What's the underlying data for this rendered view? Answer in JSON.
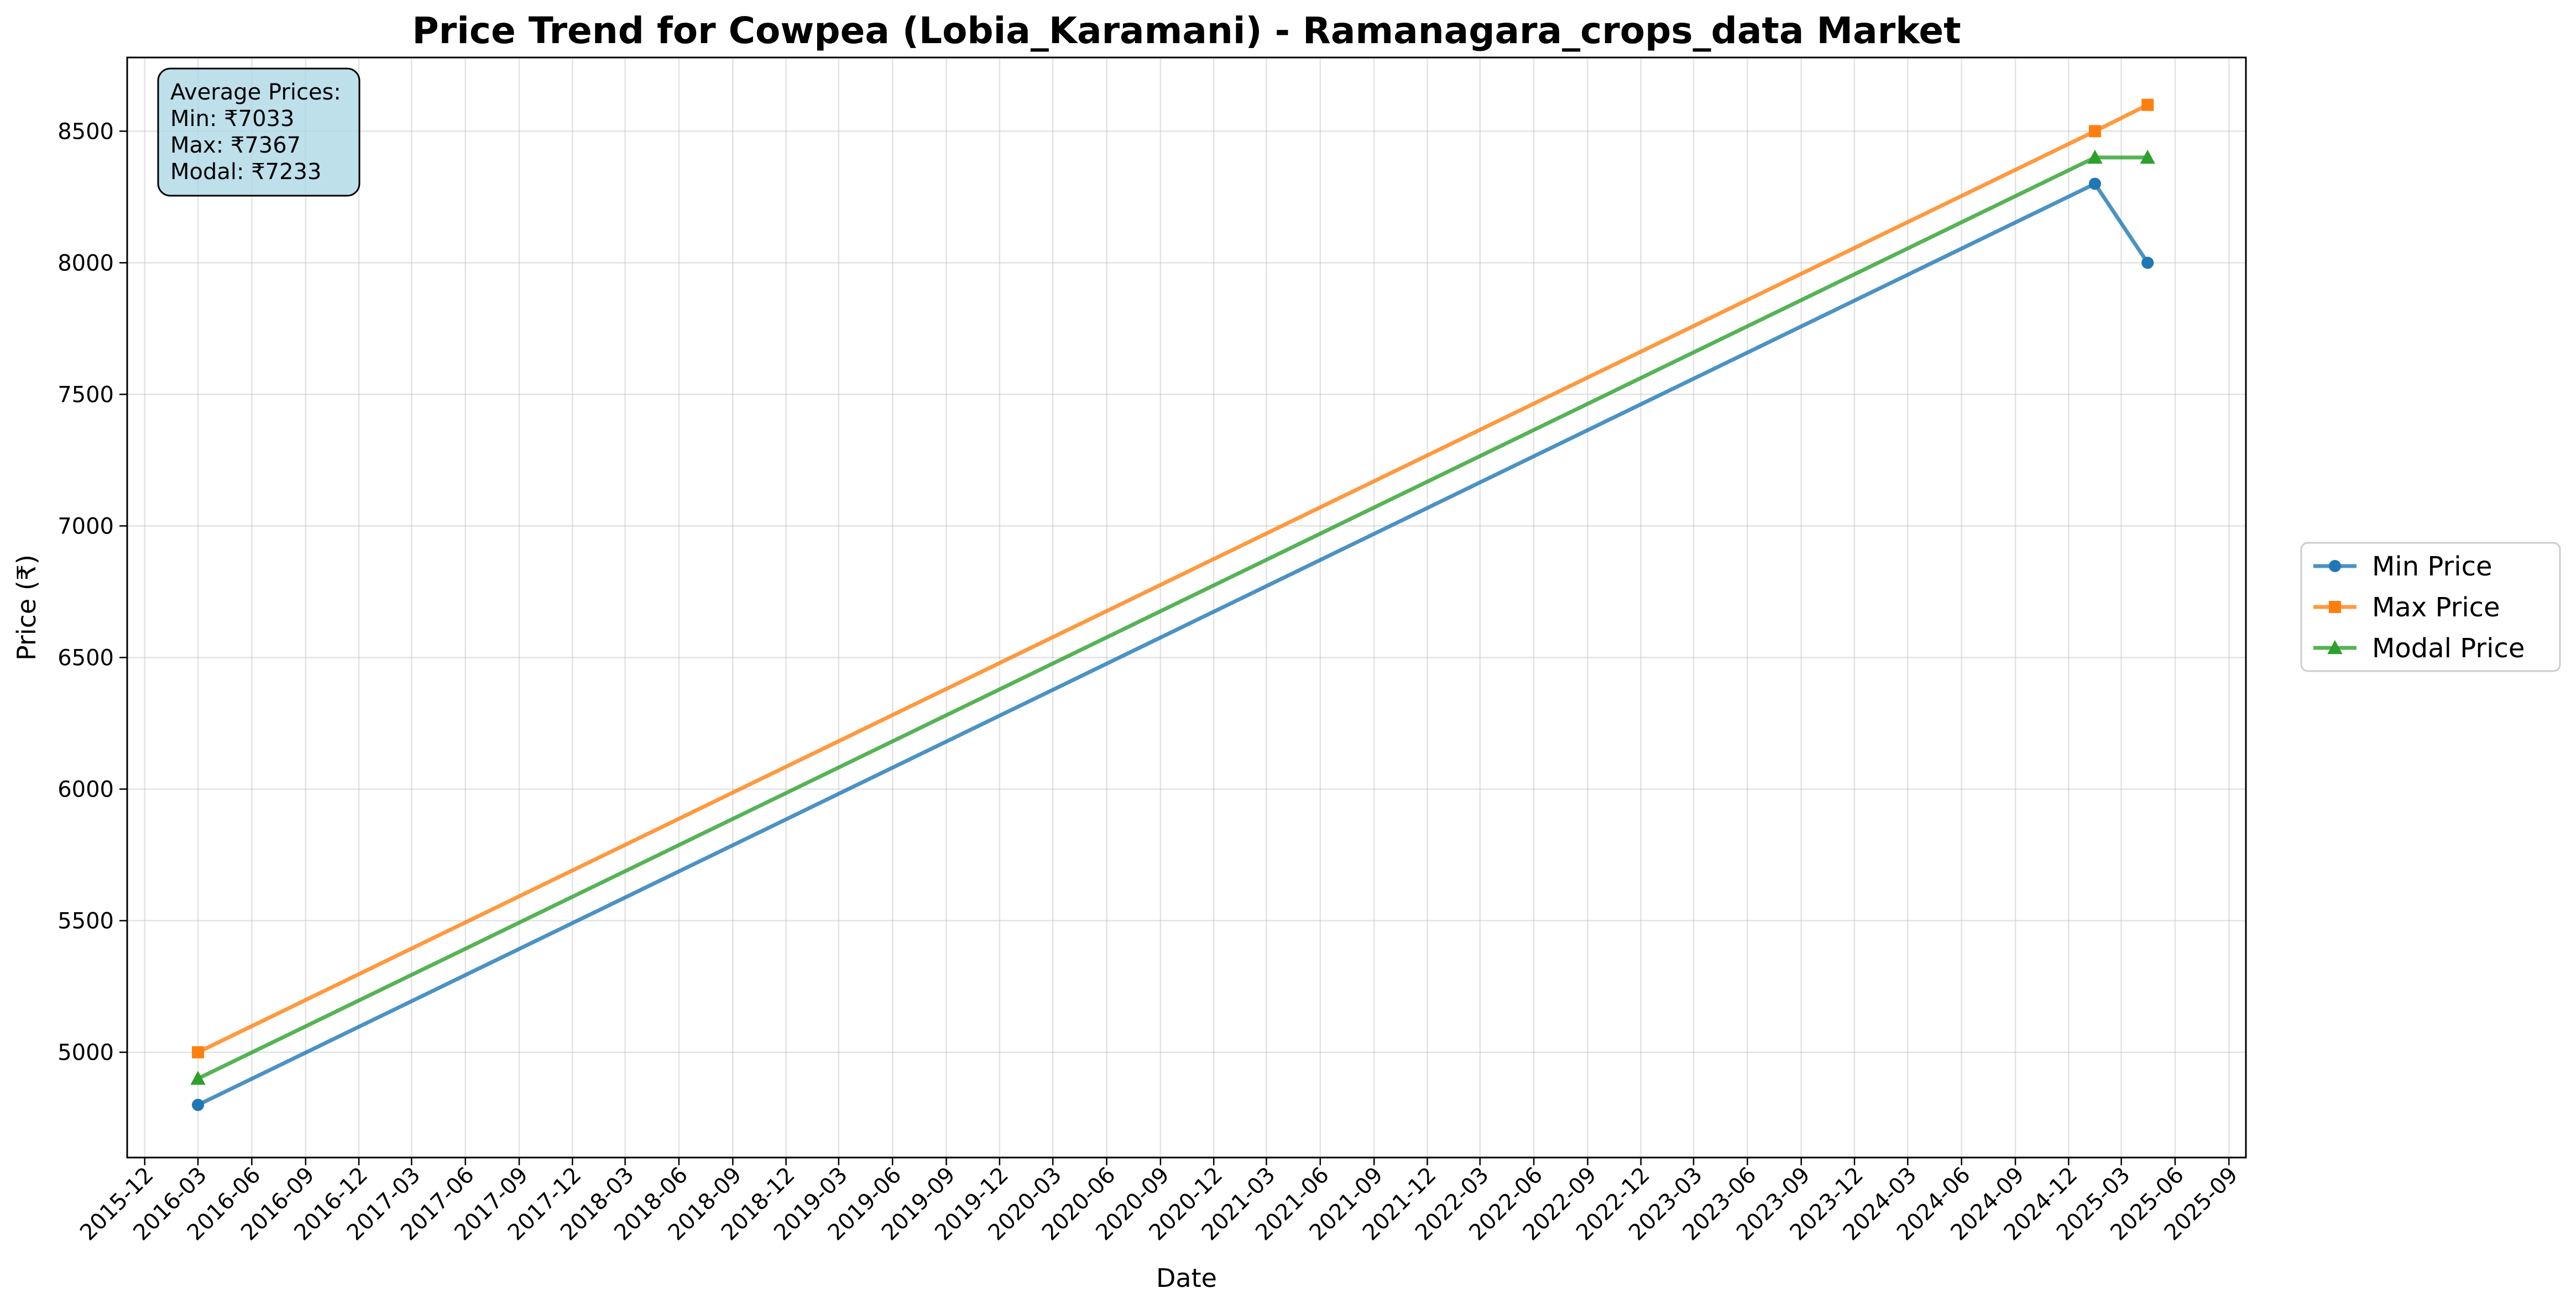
{
  "chart_data": {
    "type": "line",
    "title": "Price Trend for Cowpea (Lobia_Karamani) - Ramanagara_crops_data Market",
    "xlabel": "Date",
    "ylabel": "Price (₹)",
    "x_ticks": [
      "2015-12",
      "2016-03",
      "2016-06",
      "2016-09",
      "2016-12",
      "2017-03",
      "2017-06",
      "2017-09",
      "2017-12",
      "2018-03",
      "2018-06",
      "2018-09",
      "2018-12",
      "2019-03",
      "2019-06",
      "2019-09",
      "2019-12",
      "2020-03",
      "2020-06",
      "2020-09",
      "2020-12",
      "2021-03",
      "2021-06",
      "2021-09",
      "2021-12",
      "2022-03",
      "2022-06",
      "2022-09",
      "2022-12",
      "2023-03",
      "2023-06",
      "2023-09",
      "2023-12",
      "2024-03",
      "2024-06",
      "2024-09",
      "2024-12",
      "2025-03",
      "2025-06",
      "2025-09"
    ],
    "y_ticks": [
      5000,
      5500,
      6000,
      6500,
      7000,
      7500,
      8000,
      8500
    ],
    "xlim": [
      "2015-11-01",
      "2025-09-30"
    ],
    "ylim": [
      4600,
      8780
    ],
    "grid": true,
    "legend_position": "right, outside plot",
    "series": [
      {
        "name": "Min Price",
        "color": "#1f77b4",
        "marker": "circle",
        "points": [
          {
            "x": "2016-03-01",
            "y": 4800
          },
          {
            "x": "2025-01-15",
            "y": 8300
          },
          {
            "x": "2025-04-15",
            "y": 8000
          }
        ]
      },
      {
        "name": "Max Price",
        "color": "#ff7f0e",
        "marker": "square",
        "points": [
          {
            "x": "2016-03-01",
            "y": 5000
          },
          {
            "x": "2025-01-15",
            "y": 8500
          },
          {
            "x": "2025-04-15",
            "y": 8600
          }
        ]
      },
      {
        "name": "Modal Price",
        "color": "#2ca02c",
        "marker": "triangle",
        "points": [
          {
            "x": "2016-03-01",
            "y": 4900
          },
          {
            "x": "2025-01-15",
            "y": 8400
          },
          {
            "x": "2025-04-15",
            "y": 8400
          }
        ]
      }
    ],
    "annotation": {
      "lines": [
        "Average Prices:",
        "Min: ₹7033",
        "Max: ₹7367",
        "Modal: ₹7233"
      ],
      "position": "top-left",
      "background": "#add8e6"
    }
  }
}
